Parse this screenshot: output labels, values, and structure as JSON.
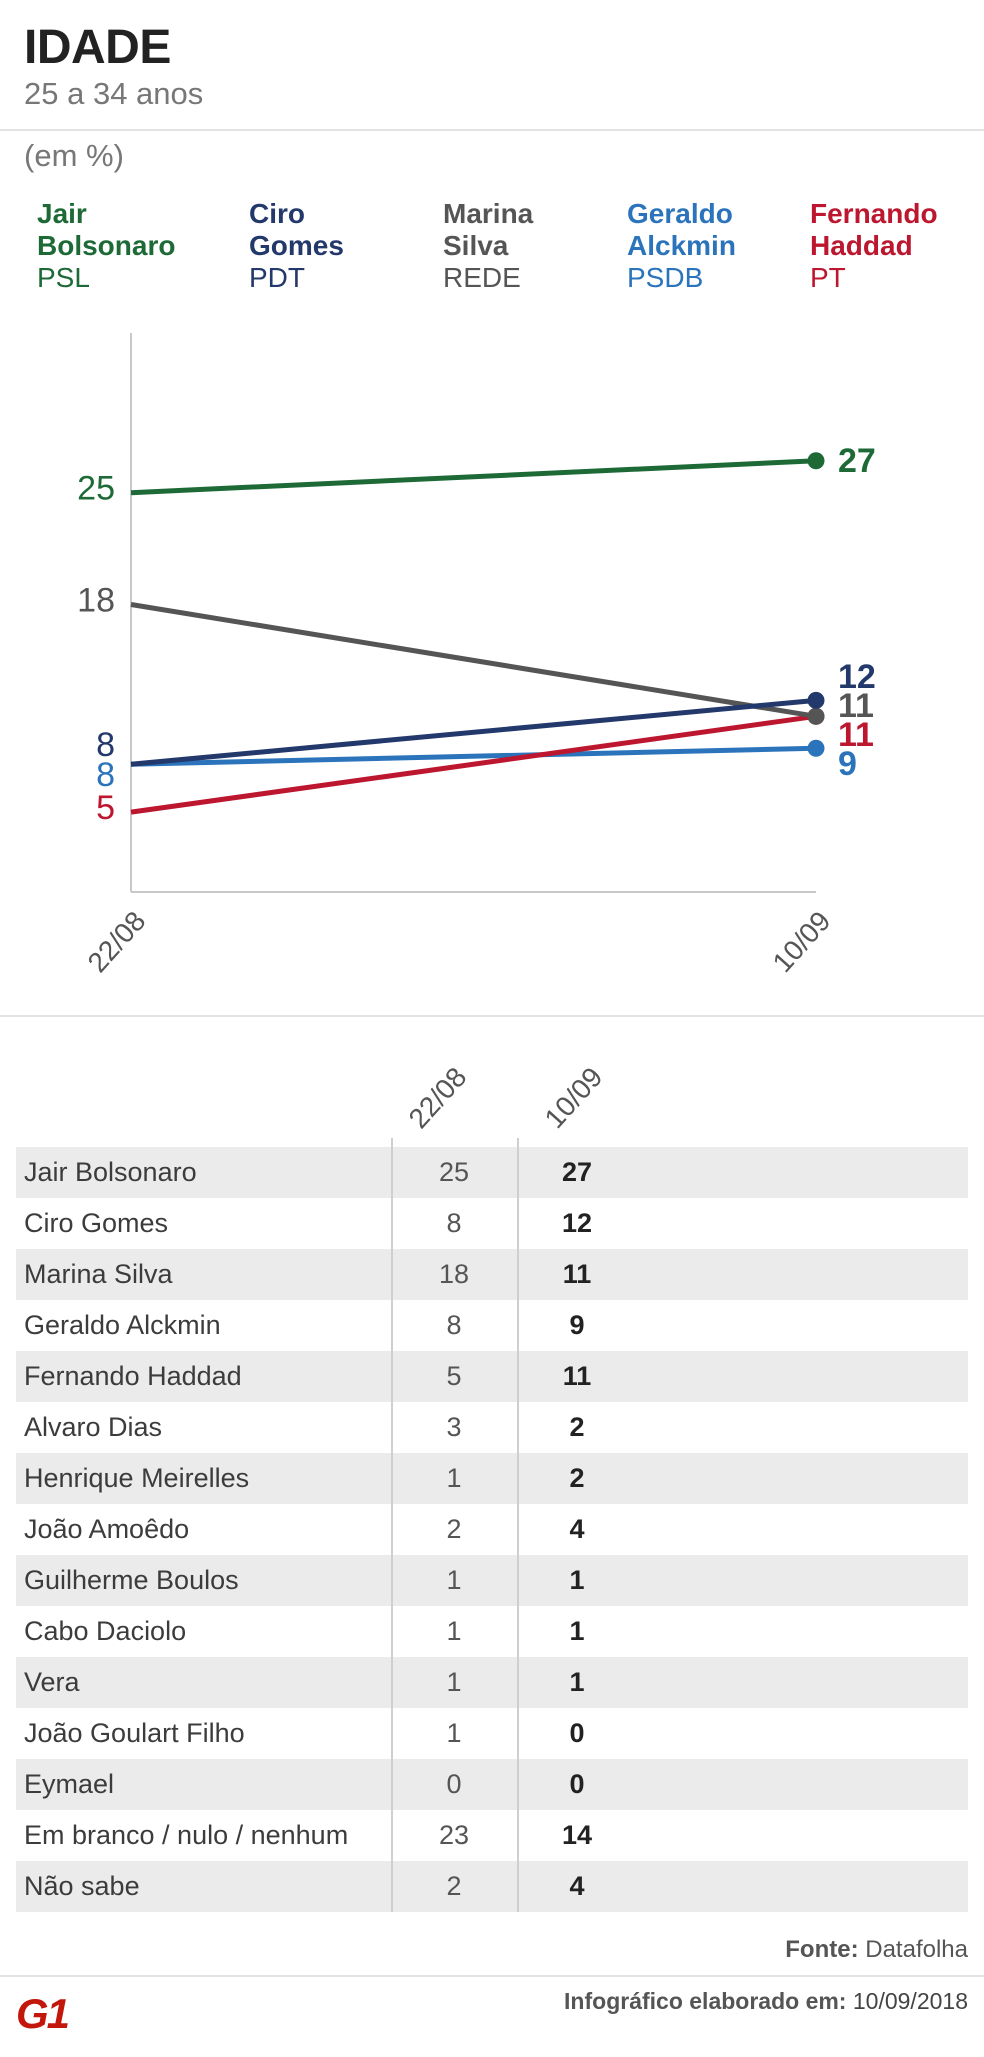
{
  "header": {
    "title": "IDADE",
    "subtitle": "25 a 34 anos",
    "unit": "(em %)"
  },
  "chart_data": {
    "type": "line",
    "x": [
      "22/08",
      "10/09"
    ],
    "ylim": [
      0,
      35
    ],
    "grid": false,
    "legend": "top",
    "series": [
      {
        "name": "Jair Bolsonaro",
        "party": "PSL",
        "color": "#1d6a37",
        "values": [
          25,
          27
        ]
      },
      {
        "name": "Ciro Gomes",
        "party": "PDT",
        "color": "#23386b",
        "values": [
          8,
          12
        ]
      },
      {
        "name": "Marina Silva",
        "party": "REDE",
        "color": "#555555",
        "values": [
          18,
          11
        ]
      },
      {
        "name": "Geraldo Alckmin",
        "party": "PSDB",
        "color": "#2b74bb",
        "values": [
          8,
          9
        ]
      },
      {
        "name": "Fernando Haddad",
        "party": "PT",
        "color": "#bd1730",
        "values": [
          5,
          11
        ]
      }
    ]
  },
  "table": {
    "columns": [
      "22/08",
      "10/09"
    ],
    "rows": [
      {
        "name": "Jair Bolsonaro",
        "v1": 25,
        "v2": 27
      },
      {
        "name": "Ciro Gomes",
        "v1": 8,
        "v2": 12
      },
      {
        "name": "Marina Silva",
        "v1": 18,
        "v2": 11
      },
      {
        "name": "Geraldo Alckmin",
        "v1": 8,
        "v2": 9
      },
      {
        "name": "Fernando Haddad",
        "v1": 5,
        "v2": 11
      },
      {
        "name": "Alvaro Dias",
        "v1": 3,
        "v2": 2
      },
      {
        "name": "Henrique Meirelles",
        "v1": 1,
        "v2": 2
      },
      {
        "name": "João Amoêdo",
        "v1": 2,
        "v2": 4
      },
      {
        "name": "Guilherme Boulos",
        "v1": 1,
        "v2": 1
      },
      {
        "name": "Cabo Daciolo",
        "v1": 1,
        "v2": 1
      },
      {
        "name": "Vera",
        "v1": 1,
        "v2": 1
      },
      {
        "name": "João Goulart Filho",
        "v1": 1,
        "v2": 0
      },
      {
        "name": "Eymael",
        "v1": 0,
        "v2": 0
      },
      {
        "name": "Em branco / nulo / nenhum",
        "v1": 23,
        "v2": 14
      },
      {
        "name": "Não sabe",
        "v1": 2,
        "v2": 4
      }
    ]
  },
  "footer": {
    "source_label": "Fonte:",
    "source": "Datafolha",
    "credit_label": "Infográfico elaborado em:",
    "credit_date": "10/09/2018",
    "logo": "G1",
    "logo_color": "#c4170c"
  }
}
